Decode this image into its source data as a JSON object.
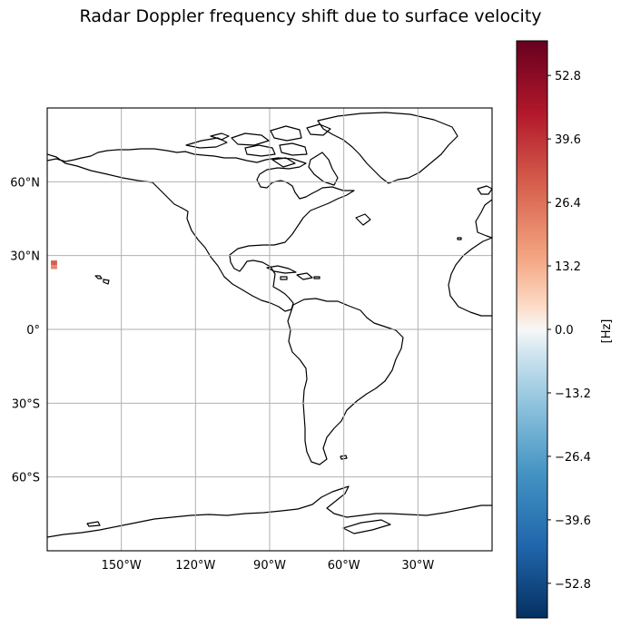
{
  "title": "Radar Doppler frequency shift due to surface velocity",
  "map": {
    "projection": "PlateCarree",
    "lon_range": [
      -180,
      0
    ],
    "lat_range": [
      -90,
      90
    ],
    "grid": true,
    "lon_ticks": [
      {
        "value": -150,
        "label": "150°W"
      },
      {
        "value": -120,
        "label": "120°W"
      },
      {
        "value": -90,
        "label": "90°W"
      },
      {
        "value": -60,
        "label": "60°W"
      },
      {
        "value": -30,
        "label": "30°W"
      }
    ],
    "lat_ticks": [
      {
        "value": 60,
        "label": "60°N"
      },
      {
        "value": 30,
        "label": "30°N"
      },
      {
        "value": 0,
        "label": "0°"
      },
      {
        "value": -30,
        "label": "30°S"
      },
      {
        "value": -60,
        "label": "60°S"
      }
    ],
    "data_patch": {
      "lon": [
        -178.5,
        -176
      ],
      "lat": [
        24.5,
        28
      ],
      "value_hz": 33
    }
  },
  "colorbar": {
    "label": "[Hz]",
    "range": [
      -60,
      60
    ],
    "colormap": "RdBu_r",
    "ticks": [
      {
        "value": 52.8,
        "label": "52.8"
      },
      {
        "value": 39.6,
        "label": "39.6"
      },
      {
        "value": 26.4,
        "label": "26.4"
      },
      {
        "value": 13.2,
        "label": "13.2"
      },
      {
        "value": 0.0,
        "label": "0.0"
      },
      {
        "value": -13.2,
        "label": "−13.2"
      },
      {
        "value": -26.4,
        "label": "−26.4"
      },
      {
        "value": -39.6,
        "label": "−39.6"
      },
      {
        "value": -52.8,
        "label": "−52.8"
      }
    ]
  }
}
